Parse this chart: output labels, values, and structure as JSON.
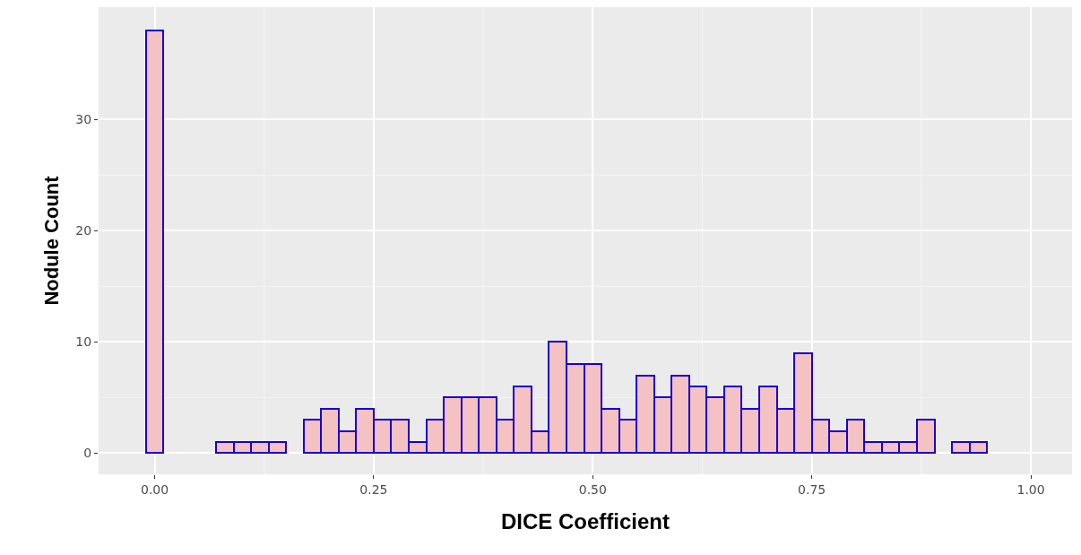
{
  "chart_data": {
    "type": "histogram",
    "xlabel": "DICE Coefficient",
    "ylabel": "Nodule Count",
    "bins": [
      -0.01,
      0.01,
      0.03,
      0.05,
      0.07,
      0.09,
      0.11,
      0.13,
      0.15,
      0.17,
      0.19,
      0.21,
      0.23,
      0.25,
      0.27,
      0.29,
      0.31,
      0.33,
      0.35,
      0.37,
      0.39,
      0.41,
      0.43,
      0.45,
      0.47,
      0.49,
      0.51,
      0.53,
      0.55,
      0.57,
      0.59,
      0.61,
      0.63,
      0.65,
      0.67,
      0.69,
      0.71,
      0.73,
      0.75,
      0.77,
      0.79,
      0.81,
      0.83,
      0.85,
      0.87,
      0.89,
      0.91,
      0.93,
      0.95,
      0.97,
      0.99,
      1.01
    ],
    "values": [
      38,
      0,
      0,
      0,
      1,
      1,
      1,
      1,
      0,
      3,
      4,
      2,
      4,
      3,
      3,
      1,
      3,
      5,
      5,
      5,
      3,
      6,
      2,
      10,
      8,
      8,
      4,
      3,
      7,
      5,
      7,
      6,
      5,
      6,
      4,
      6,
      4,
      9,
      3,
      2,
      3,
      1,
      1,
      1,
      3,
      0,
      1,
      1,
      0,
      0,
      0
    ],
    "color": "#f4c2c2",
    "xlim": [
      -0.064,
      1.047
    ],
    "xticks": [
      {
        "value": 0,
        "label": "0.00"
      },
      0.25,
      {
        "value": 0.5,
        "label": "0.50"
      },
      0.75,
      {
        "value": 1,
        "label": "1.00"
      }
    ],
    "ylim": [
      -1.9,
      40.1
    ],
    "yticks": [
      0,
      10,
      20,
      30
    ],
    "grid": true
  }
}
